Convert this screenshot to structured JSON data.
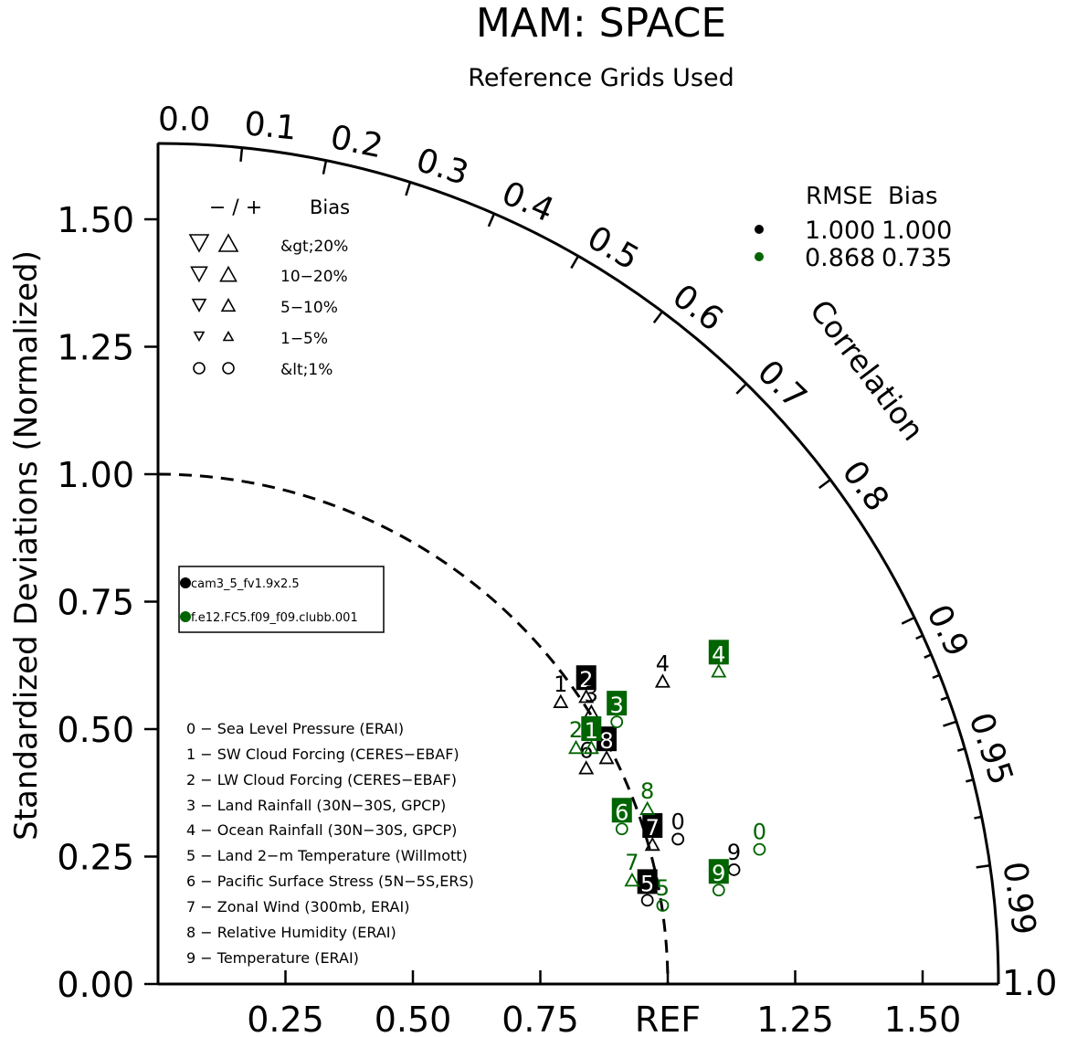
{
  "chart_data": {
    "type": "taylor-diagram",
    "title": "MAM: SPACE",
    "subtitle": "Reference Grids Used",
    "ylabel": "Standardized Deviations (Normalized)",
    "xlabel": "REF",
    "arc_label": "Correlation",
    "std_range": [
      0,
      1.65
    ],
    "std_ticks_y": [
      "0.00",
      "0.25",
      "0.50",
      "0.75",
      "1.00",
      "1.25",
      "1.50"
    ],
    "std_ticks_x": [
      "0.25",
      "0.50",
      "0.75",
      "REF",
      "1.25",
      "1.50"
    ],
    "correlation_ticks": [
      "0.0",
      "0.1",
      "0.2",
      "0.3",
      "0.4",
      "0.5",
      "0.6",
      "0.7",
      "0.8",
      "0.9",
      "0.95",
      "0.99",
      "1.0"
    ],
    "bias_legend": {
      "header_sign": "−  /  +",
      "header_bias": "Bias",
      "rows": [
        "&gt;20%",
        "10−20%",
        "5−10%",
        "1−5%",
        "&lt;1%"
      ]
    },
    "stats_legend": {
      "header": "RMSE  Bias",
      "rows": [
        {
          "color": "#000000",
          "rmse": "1.000",
          "bias": "1.000"
        },
        {
          "color": "#006400",
          "rmse": "0.868",
          "bias": "0.735"
        }
      ]
    },
    "series": [
      {
        "name": "cam3_5_fv1.9x2.5",
        "color": "#000000",
        "points": [
          {
            "label": "0",
            "x": 1.02,
            "y": 0.32,
            "marker": "circle"
          },
          {
            "label": "1",
            "x": 0.79,
            "y": 0.59,
            "marker": "tri-up"
          },
          {
            "label": "2",
            "x": 0.84,
            "y": 0.6,
            "marker": "tri-up",
            "boxed": true
          },
          {
            "label": "3",
            "x": 0.85,
            "y": 0.57,
            "marker": "tri-up"
          },
          {
            "label": "4",
            "x": 0.99,
            "y": 0.63,
            "marker": "tri-up"
          },
          {
            "label": "5",
            "x": 0.96,
            "y": 0.2,
            "marker": "circle",
            "boxed": true
          },
          {
            "label": "6",
            "x": 0.84,
            "y": 0.46,
            "marker": "tri-up"
          },
          {
            "label": "7",
            "x": 0.97,
            "y": 0.31,
            "marker": "tri-up",
            "boxed": true
          },
          {
            "label": "8",
            "x": 0.88,
            "y": 0.48,
            "marker": "tri-up",
            "boxed": true
          },
          {
            "label": "9",
            "x": 1.13,
            "y": 0.26,
            "marker": "circle"
          }
        ]
      },
      {
        "name": "f.e12.FC5.f09_f09.clubb.001",
        "color": "#006400",
        "points": [
          {
            "label": "0",
            "x": 1.18,
            "y": 0.3,
            "marker": "circle"
          },
          {
            "label": "1",
            "x": 0.85,
            "y": 0.5,
            "marker": "tri-up",
            "boxed": true
          },
          {
            "label": "2",
            "x": 0.82,
            "y": 0.5,
            "marker": "tri-up"
          },
          {
            "label": "3",
            "x": 0.9,
            "y": 0.55,
            "marker": "circle",
            "boxed": true
          },
          {
            "label": "4",
            "x": 1.1,
            "y": 0.65,
            "marker": "tri-up",
            "boxed": true
          },
          {
            "label": "5",
            "x": 0.99,
            "y": 0.19,
            "marker": "circle"
          },
          {
            "label": "6",
            "x": 0.91,
            "y": 0.34,
            "marker": "circle",
            "boxed": true
          },
          {
            "label": "7",
            "x": 0.93,
            "y": 0.24,
            "marker": "tri-up"
          },
          {
            "label": "8",
            "x": 0.96,
            "y": 0.38,
            "marker": "tri-up"
          },
          {
            "label": "9",
            "x": 1.1,
            "y": 0.22,
            "marker": "circle",
            "boxed": true
          }
        ]
      }
    ],
    "variables": [
      "0 − Sea Level Pressure (ERAI)",
      "1 − SW Cloud Forcing (CERES−EBAF)",
      "2 − LW Cloud Forcing (CERES−EBAF)",
      "3 − Land Rainfall (30N−30S, GPCP)",
      "4 − Ocean Rainfall (30N−30S, GPCP)",
      "5 − Land 2−m Temperature (Willmott)",
      "6 − Pacific Surface Stress (5N−5S,ERS)",
      "7 − Zonal Wind (300mb, ERAI)",
      "8 − Relative Humidity (ERAI)",
      "9 − Temperature (ERAI)"
    ]
  }
}
